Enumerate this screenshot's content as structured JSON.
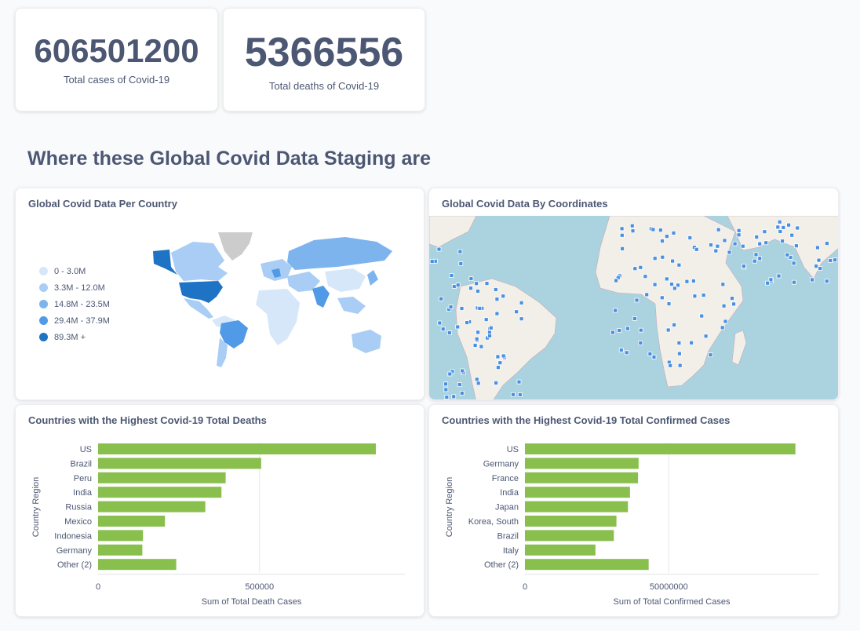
{
  "scalars": [
    {
      "value": "606501200",
      "label": "Total cases of Covid-19"
    },
    {
      "value": "5366556",
      "label": "Total deaths of Covid-19"
    }
  ],
  "section_heading": "Where these Global Covid Data Staging are",
  "region_map": {
    "title": "Global Covid Data Per Country",
    "legend": [
      {
        "label": "0 - 3.0M",
        "color": "#d6e7fa"
      },
      {
        "label": "3.3M - 12.0M",
        "color": "#a9cdf4"
      },
      {
        "label": "14.8M - 23.5M",
        "color": "#7db4ee"
      },
      {
        "label": "29.4M - 37.9M",
        "color": "#509ae7"
      },
      {
        "label": "89.3M +",
        "color": "#1f73c4"
      }
    ]
  },
  "pin_map": {
    "title": "Global Covid Data By Coordinates",
    "colors": {
      "ocean": "#aad3df",
      "land": "#f2efe9",
      "border": "#c9a8b8",
      "pin": "#4a90e2"
    }
  },
  "chart_data": [
    {
      "type": "bar",
      "orientation": "horizontal",
      "title": "Countries with the Highest Covid-19 Total Deaths",
      "categories": [
        "US",
        "Brazil",
        "Peru",
        "India",
        "Russia",
        "Mexico",
        "Indonesia",
        "Germany",
        "Other (2)"
      ],
      "values": [
        860000,
        505000,
        395000,
        382000,
        332000,
        207000,
        139000,
        137000,
        242000
      ],
      "xlabel": "Sum of Total Death Cases",
      "ylabel": "Country Region",
      "xlim": [
        0,
        950000
      ],
      "xticks": [
        0,
        500000
      ],
      "xtick_labels": [
        "0",
        "500000"
      ],
      "color": "#88bf4d"
    },
    {
      "type": "bar",
      "orientation": "horizontal",
      "title": "Countries with the Highest Covid-19 Total Confirmed Cases",
      "categories": [
        "US",
        "Germany",
        "France",
        "India",
        "Japan",
        "Korea, South",
        "Brazil",
        "Italy",
        "Other (2)"
      ],
      "values": [
        94000000,
        39500000,
        39300000,
        36500000,
        35800000,
        31800000,
        30900000,
        24500000,
        43000000
      ],
      "xlabel": "Sum of Total Confirmed Cases",
      "ylabel": "Country Region",
      "xlim": [
        0,
        102000000
      ],
      "xticks": [
        0,
        50000000
      ],
      "xtick_labels": [
        "0",
        "50000000"
      ],
      "color": "#88bf4d"
    }
  ]
}
